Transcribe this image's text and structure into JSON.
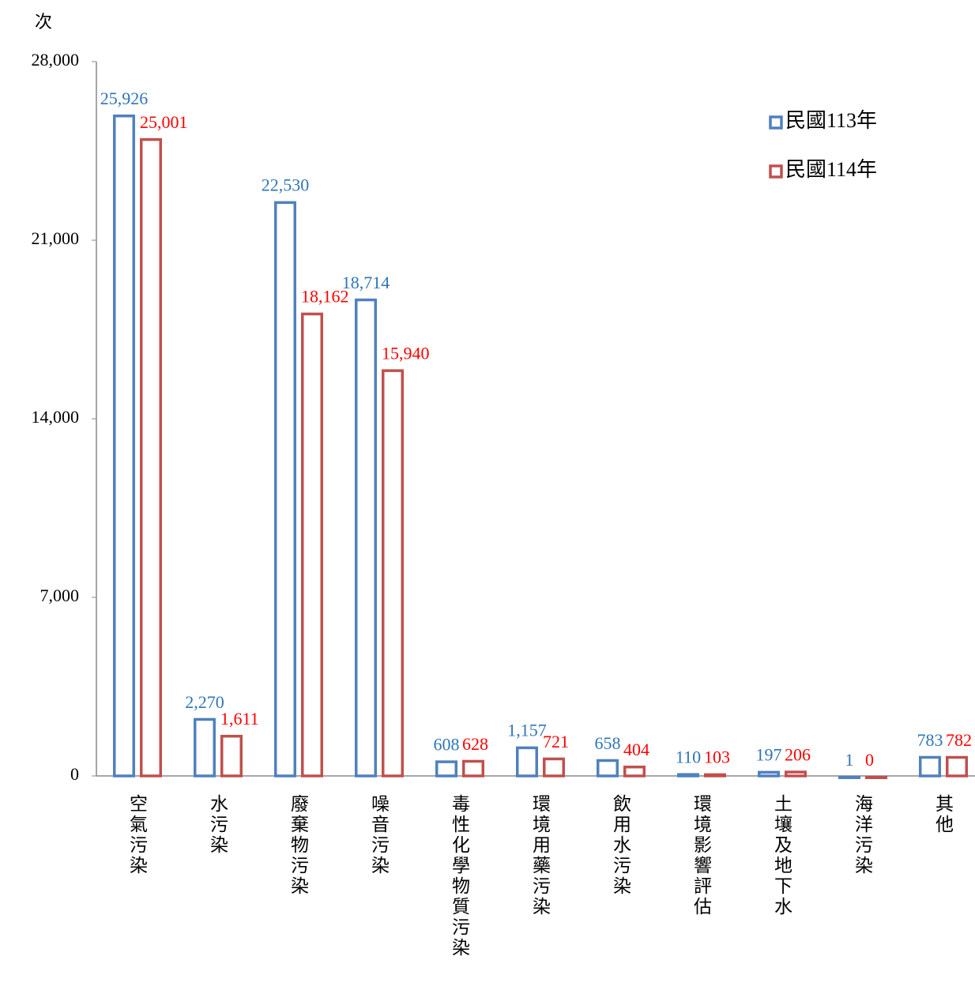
{
  "chart_data": {
    "type": "bar",
    "y_label": "次",
    "categories": [
      "空氣污染",
      "水污染",
      "廢棄物污染",
      "噪音污染",
      "毒性化學物質污染",
      "環境用藥污染",
      "飲用水污染",
      "環境影響評估",
      "土壤及地下水",
      "海洋污染",
      "其他"
    ],
    "series": [
      {
        "name": "民國113年",
        "color": "#4f81bd",
        "label_color": "#2e75b6",
        "values": [
          25926,
          2270,
          22530,
          18714,
          608,
          1157,
          658,
          110,
          197,
          1,
          783
        ],
        "value_labels": [
          "25,926",
          "2,270",
          "22,530",
          "18,714",
          "608",
          "1,157",
          "658",
          "110",
          "197",
          "1",
          "783"
        ]
      },
      {
        "name": "民國114年",
        "color": "#c0504d",
        "label_color": "#ff0000",
        "values": [
          25001,
          1611,
          18162,
          15940,
          628,
          721,
          404,
          103,
          206,
          0,
          782
        ],
        "value_labels": [
          "25,001",
          "1,611",
          "18,162",
          "15,940",
          "628",
          "721",
          "404",
          "103",
          "206",
          "0",
          "782"
        ]
      }
    ],
    "ylim": [
      0,
      28000
    ],
    "yticks": [
      0,
      {
        "value": 7000,
        "label": "7,000"
      },
      {
        "value": 14000,
        "label": "14,000"
      },
      {
        "value": 21000,
        "label": "21,000"
      },
      {
        "value": 28000,
        "label": "28,000"
      }
    ],
    "grid": false,
    "legend": "upper right"
  }
}
